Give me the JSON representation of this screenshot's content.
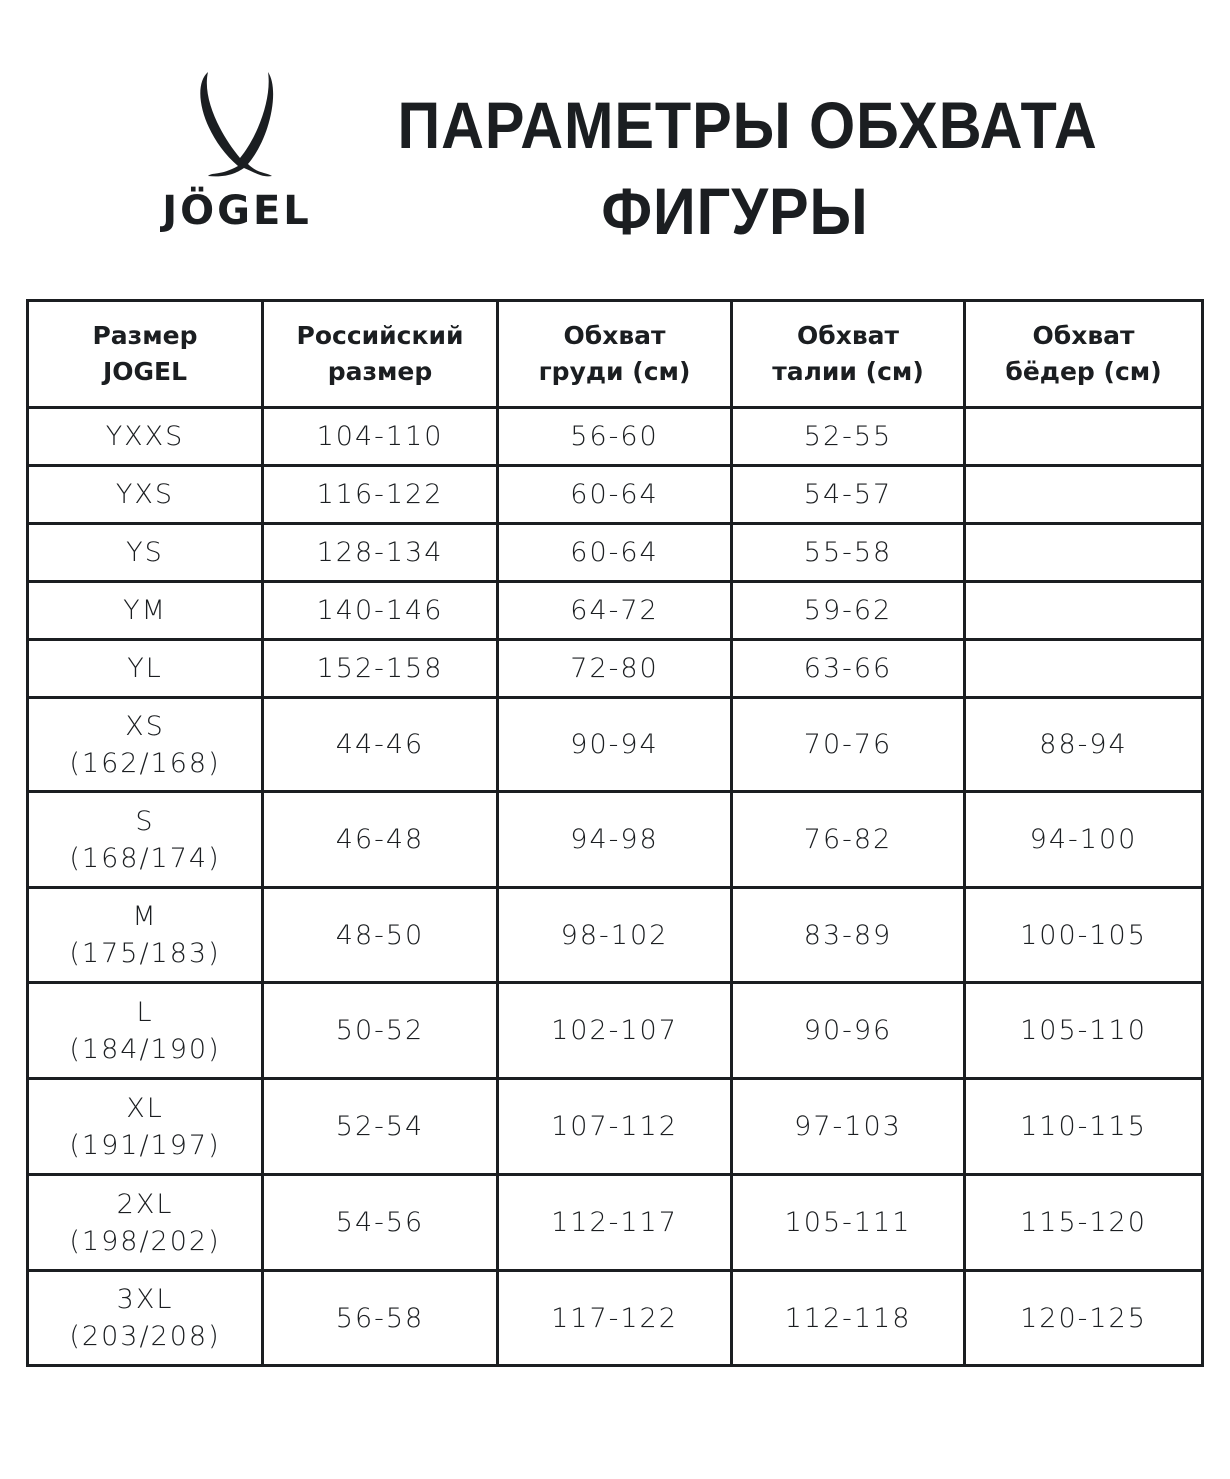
{
  "logo": {
    "text": "JÖGEL",
    "icon": "jogel-v-logo"
  },
  "title": {
    "line1": "ПАРАМЕТРЫ ОБХВАТА",
    "line2": "ФИГУРЫ"
  },
  "table": {
    "headers": [
      {
        "line1": "Размер",
        "line2": "JOGEL"
      },
      {
        "line1": "Российский",
        "line2": "размер"
      },
      {
        "line1": "Обхват",
        "line2": "груди (см)"
      },
      {
        "line1": "Обхват",
        "line2": "талии (см)"
      },
      {
        "line1": "Обхват",
        "line2": "бёдер (см)"
      }
    ],
    "rows": [
      {
        "size": "YXXS",
        "height": "",
        "ru": "104-110",
        "chest": "56-60",
        "waist": "52-55",
        "hips": ""
      },
      {
        "size": "YXS",
        "height": "",
        "ru": "116-122",
        "chest": "60-64",
        "waist": "54-57",
        "hips": ""
      },
      {
        "size": "YS",
        "height": "",
        "ru": "128-134",
        "chest": "60-64",
        "waist": "55-58",
        "hips": ""
      },
      {
        "size": "YM",
        "height": "",
        "ru": "140-146",
        "chest": "64-72",
        "waist": "59-62",
        "hips": ""
      },
      {
        "size": "YL",
        "height": "",
        "ru": "152-158",
        "chest": "72-80",
        "waist": "63-66",
        "hips": ""
      },
      {
        "size": "XS",
        "height": "(162/168)",
        "ru": "44-46",
        "chest": "90-94",
        "waist": "70-76",
        "hips": "88-94"
      },
      {
        "size": "S",
        "height": "(168/174)",
        "ru": "46-48",
        "chest": "94-98",
        "waist": "76-82",
        "hips": "94-100"
      },
      {
        "size": "M",
        "height": "(175/183)",
        "ru": "48-50",
        "chest": "98-102",
        "waist": "83-89",
        "hips": "100-105"
      },
      {
        "size": "L",
        "height": "(184/190)",
        "ru": "50-52",
        "chest": "102-107",
        "waist": "90-96",
        "hips": "105-110"
      },
      {
        "size": "XL",
        "height": "(191/197)",
        "ru": "52-54",
        "chest": "107-112",
        "waist": "97-103",
        "hips": "110-115"
      },
      {
        "size": "2XL",
        "height": "(198/202)",
        "ru": "54-56",
        "chest": "112-117",
        "waist": "105-111",
        "hips": "115-120"
      },
      {
        "size": "3XL",
        "height": "(203/208)",
        "ru": "56-58",
        "chest": "117-122",
        "waist": "112-118",
        "hips": "120-125"
      }
    ]
  }
}
